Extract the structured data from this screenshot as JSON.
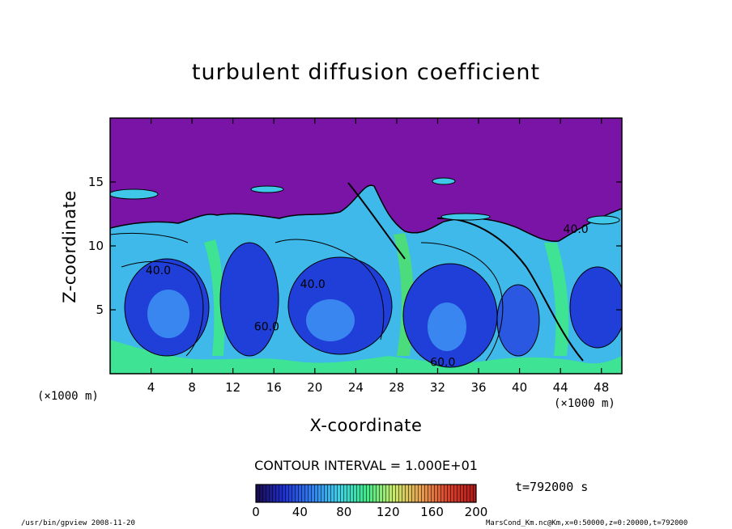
{
  "chart_data": {
    "type": "heatmap",
    "title": "turbulent diffusion coefficient",
    "xlabel": "X-coordinate",
    "ylabel": "Z-coordinate",
    "x_unit": "(×1000 m)",
    "xlim": [
      0,
      50
    ],
    "ylim": [
      0,
      20
    ],
    "x_ticks": [
      4,
      8,
      12,
      16,
      20,
      24,
      28,
      32,
      36,
      40,
      44,
      48
    ],
    "y_ticks": [
      5,
      10,
      15
    ],
    "contour_labels": [
      {
        "x": 4.7,
        "z": 7.8,
        "text": "40.0"
      },
      {
        "x": 19.8,
        "z": 6.7,
        "text": "40.0"
      },
      {
        "x": 15.3,
        "z": 3.4,
        "text": "60.0"
      },
      {
        "x": 32.5,
        "z": 0.6,
        "text": "60.0"
      },
      {
        "x": 45.5,
        "z": 11.0,
        "text": "40.0"
      }
    ],
    "colorbar": {
      "min": 0,
      "max": 200,
      "ticks": [
        0,
        40,
        80,
        120,
        160,
        200
      ],
      "colors": [
        "#1a0a4a",
        "#1f2fd0",
        "#2f7cf0",
        "#3fd0e8",
        "#3ee88a",
        "#c8ea6a",
        "#e8a050",
        "#d8402a",
        "#b01818"
      ]
    },
    "contour_interval": "CONTOUR INTERVAL = 1.000E+01",
    "time_label": "t=792000 s"
  },
  "footer": {
    "left": "/usr/bin/gpview  2008-11-20",
    "right": "MarsCond_Km.nc@Km,x=0:50000,z=0:20000,t=792000"
  },
  "colors": {
    "upper_region": "#7a14a6",
    "deep_blue": "#1f3fd8",
    "mid_blue": "#3a86f0",
    "cyan": "#3fc8e8",
    "green": "#3ee88a"
  }
}
